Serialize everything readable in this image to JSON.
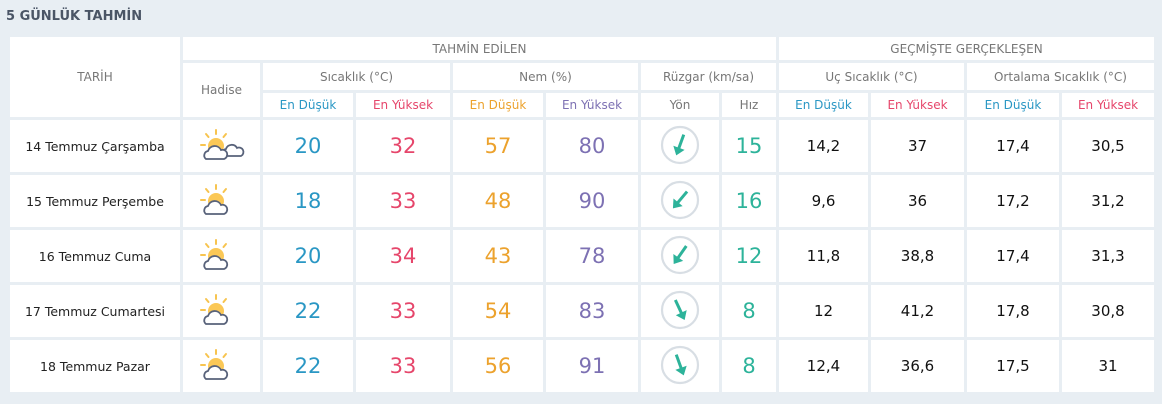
{
  "title": "5 GÜNLÜK TAHMİN",
  "headers": {
    "tarih": "TARİH",
    "tahmin": "TAHMİN EDİLEN",
    "gecmis": "GEÇMİŞTE GERÇEKLEŞEN",
    "hadise": "Hadise",
    "sicaklik": "Sıcaklık (°C)",
    "nem": "Nem (%)",
    "ruzgar": "Rüzgar (km/sa)",
    "uc": "Uç Sıcaklık (°C)",
    "ortalama": "Ortalama Sıcaklık (°C)",
    "en_dusuk": "En Düşük",
    "en_yuksek": "En Yüksek",
    "yon": "Yön",
    "hiz": "Hız"
  },
  "colors": {
    "blue": "#2a97c4",
    "red": "#e6466b",
    "orange": "#eca22d",
    "purple": "#7d71b3",
    "teal": "#2db39a"
  },
  "rows": [
    {
      "date": "14 Temmuz Çarşamba",
      "icon": "partly-cloudy-icon",
      "t_min": "20",
      "t_max": "32",
      "h_min": "57",
      "h_max": "80",
      "wind_dir_deg": 200,
      "wind_speed": "15",
      "uc_min": "14,2",
      "uc_max": "37",
      "ort_min": "17,4",
      "ort_max": "30,5"
    },
    {
      "date": "15 Temmuz Perşembe",
      "icon": "partly-cloudy-icon",
      "t_min": "18",
      "t_max": "33",
      "h_min": "48",
      "h_max": "90",
      "wind_dir_deg": 220,
      "wind_speed": "16",
      "uc_min": "9,6",
      "uc_max": "36",
      "ort_min": "17,2",
      "ort_max": "31,2"
    },
    {
      "date": "16 Temmuz Cuma",
      "icon": "partly-cloudy-icon",
      "t_min": "20",
      "t_max": "34",
      "h_min": "43",
      "h_max": "78",
      "wind_dir_deg": 215,
      "wind_speed": "12",
      "uc_min": "11,8",
      "uc_max": "38,8",
      "ort_min": "17,4",
      "ort_max": "31,3"
    },
    {
      "date": "17 Temmuz Cumartesi",
      "icon": "partly-cloudy-icon",
      "t_min": "22",
      "t_max": "33",
      "h_min": "54",
      "h_max": "83",
      "wind_dir_deg": 155,
      "wind_speed": "8",
      "uc_min": "12",
      "uc_max": "41,2",
      "ort_min": "17,8",
      "ort_max": "30,8"
    },
    {
      "date": "18 Temmuz Pazar",
      "icon": "partly-cloudy-icon",
      "t_min": "22",
      "t_max": "33",
      "h_min": "56",
      "h_max": "91",
      "wind_dir_deg": 160,
      "wind_speed": "8",
      "uc_min": "12,4",
      "uc_max": "36,6",
      "ort_min": "17,5",
      "ort_max": "31"
    }
  ]
}
